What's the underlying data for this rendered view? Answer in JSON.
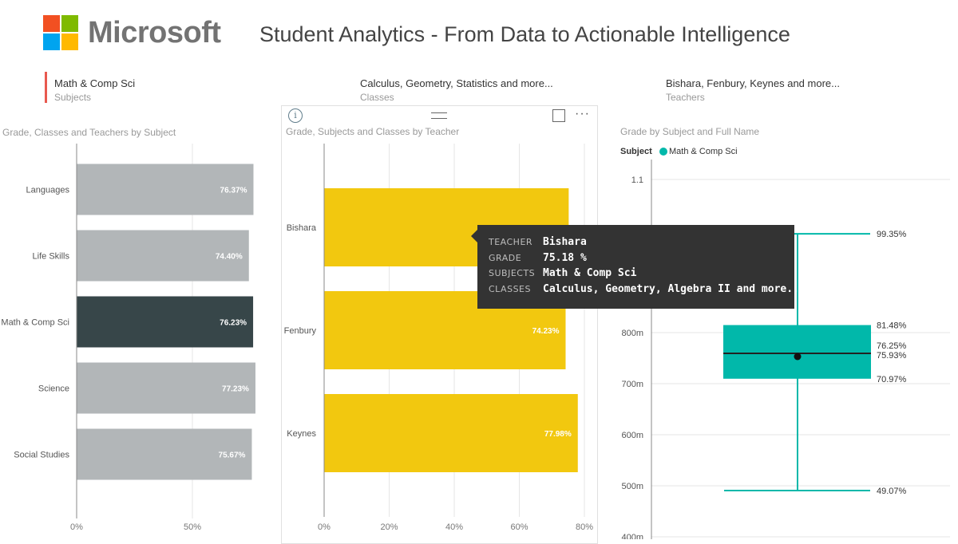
{
  "header": {
    "logo_text": "Microsoft",
    "title": "Student Analytics - From Data to Actionable Intelligence",
    "logo_colors": [
      "#f25022",
      "#7fba00",
      "#00a4ef",
      "#ffb900"
    ]
  },
  "slicers": [
    {
      "value": "Math & Comp Sci",
      "label": "Subjects"
    },
    {
      "value": "Calculus, Geometry, Statistics and more...",
      "label": "Classes"
    },
    {
      "value": "Bishara, Fenbury, Keynes and more...",
      "label": "Teachers"
    }
  ],
  "chart_data": [
    {
      "type": "bar",
      "orientation": "horizontal",
      "title": "Grade, Classes and Teachers by Subject",
      "categories": [
        "Languages",
        "Life Skills",
        "Math & Comp Sci",
        "Science",
        "Social Studies"
      ],
      "values": [
        76.37,
        74.4,
        76.23,
        77.23,
        75.67
      ],
      "data_labels": [
        "76.37%",
        "74.40%",
        "76.23%",
        "77.23%",
        "75.67%"
      ],
      "highlighted": "Math & Comp Sci",
      "x_ticks": [
        "0%",
        "50%"
      ],
      "xlim": [
        0,
        100
      ],
      "colors": {
        "bar": "#b2b6b8",
        "highlight": "#374649",
        "label": "#ffffff"
      }
    },
    {
      "type": "bar",
      "orientation": "horizontal",
      "title": "Grade, Subjects and Classes by Teacher",
      "categories": [
        "Bishara",
        "Fenbury",
        "Keynes"
      ],
      "values": [
        75.18,
        74.23,
        77.98
      ],
      "data_labels": [
        "75.18%",
        "74.23%",
        "77.98%"
      ],
      "x_ticks": [
        "0%",
        "20%",
        "40%",
        "60%",
        "80%"
      ],
      "xlim": [
        0,
        80
      ],
      "colors": {
        "bar": "#f2c80f",
        "label": "#ffffff"
      }
    },
    {
      "type": "box",
      "title": "Grade by Subject and Full Name",
      "legend_title": "Subject",
      "legend": [
        "Math & Comp Sci"
      ],
      "y_ticks": [
        "1.1",
        "800m",
        "700m",
        "600m",
        "500m",
        "400m"
      ],
      "ylim": [
        0.4,
        1.1
      ],
      "max": 0.9935,
      "q3": 0.8148,
      "median": 0.7593,
      "mean": 0.7625,
      "q1": 0.7097,
      "min": 0.4907,
      "value_labels": {
        "max": "99.35%",
        "q3": "81.48%",
        "mean": "76.25%",
        "median": "75.93%",
        "q1": "70.97%",
        "min": "49.07%"
      },
      "colors": {
        "box": "#01b8aa",
        "median_line": "#222222",
        "mean_dot": "#111111"
      }
    }
  ],
  "tooltip": {
    "rows": [
      {
        "key": "TEACHER",
        "value": "Bishara"
      },
      {
        "key": "GRADE",
        "value": "75.18 %"
      },
      {
        "key": "SUBJECTS",
        "value": "Math & Comp Sci"
      },
      {
        "key": "CLASSES",
        "value": "Calculus, Geometry, Algebra II and more..."
      }
    ]
  },
  "visual_header": {
    "info_glyph": "i",
    "more_glyph": "···",
    "icons": [
      "info-icon",
      "drag-handle-icon",
      "focus-mode-icon",
      "more-options-icon"
    ]
  }
}
